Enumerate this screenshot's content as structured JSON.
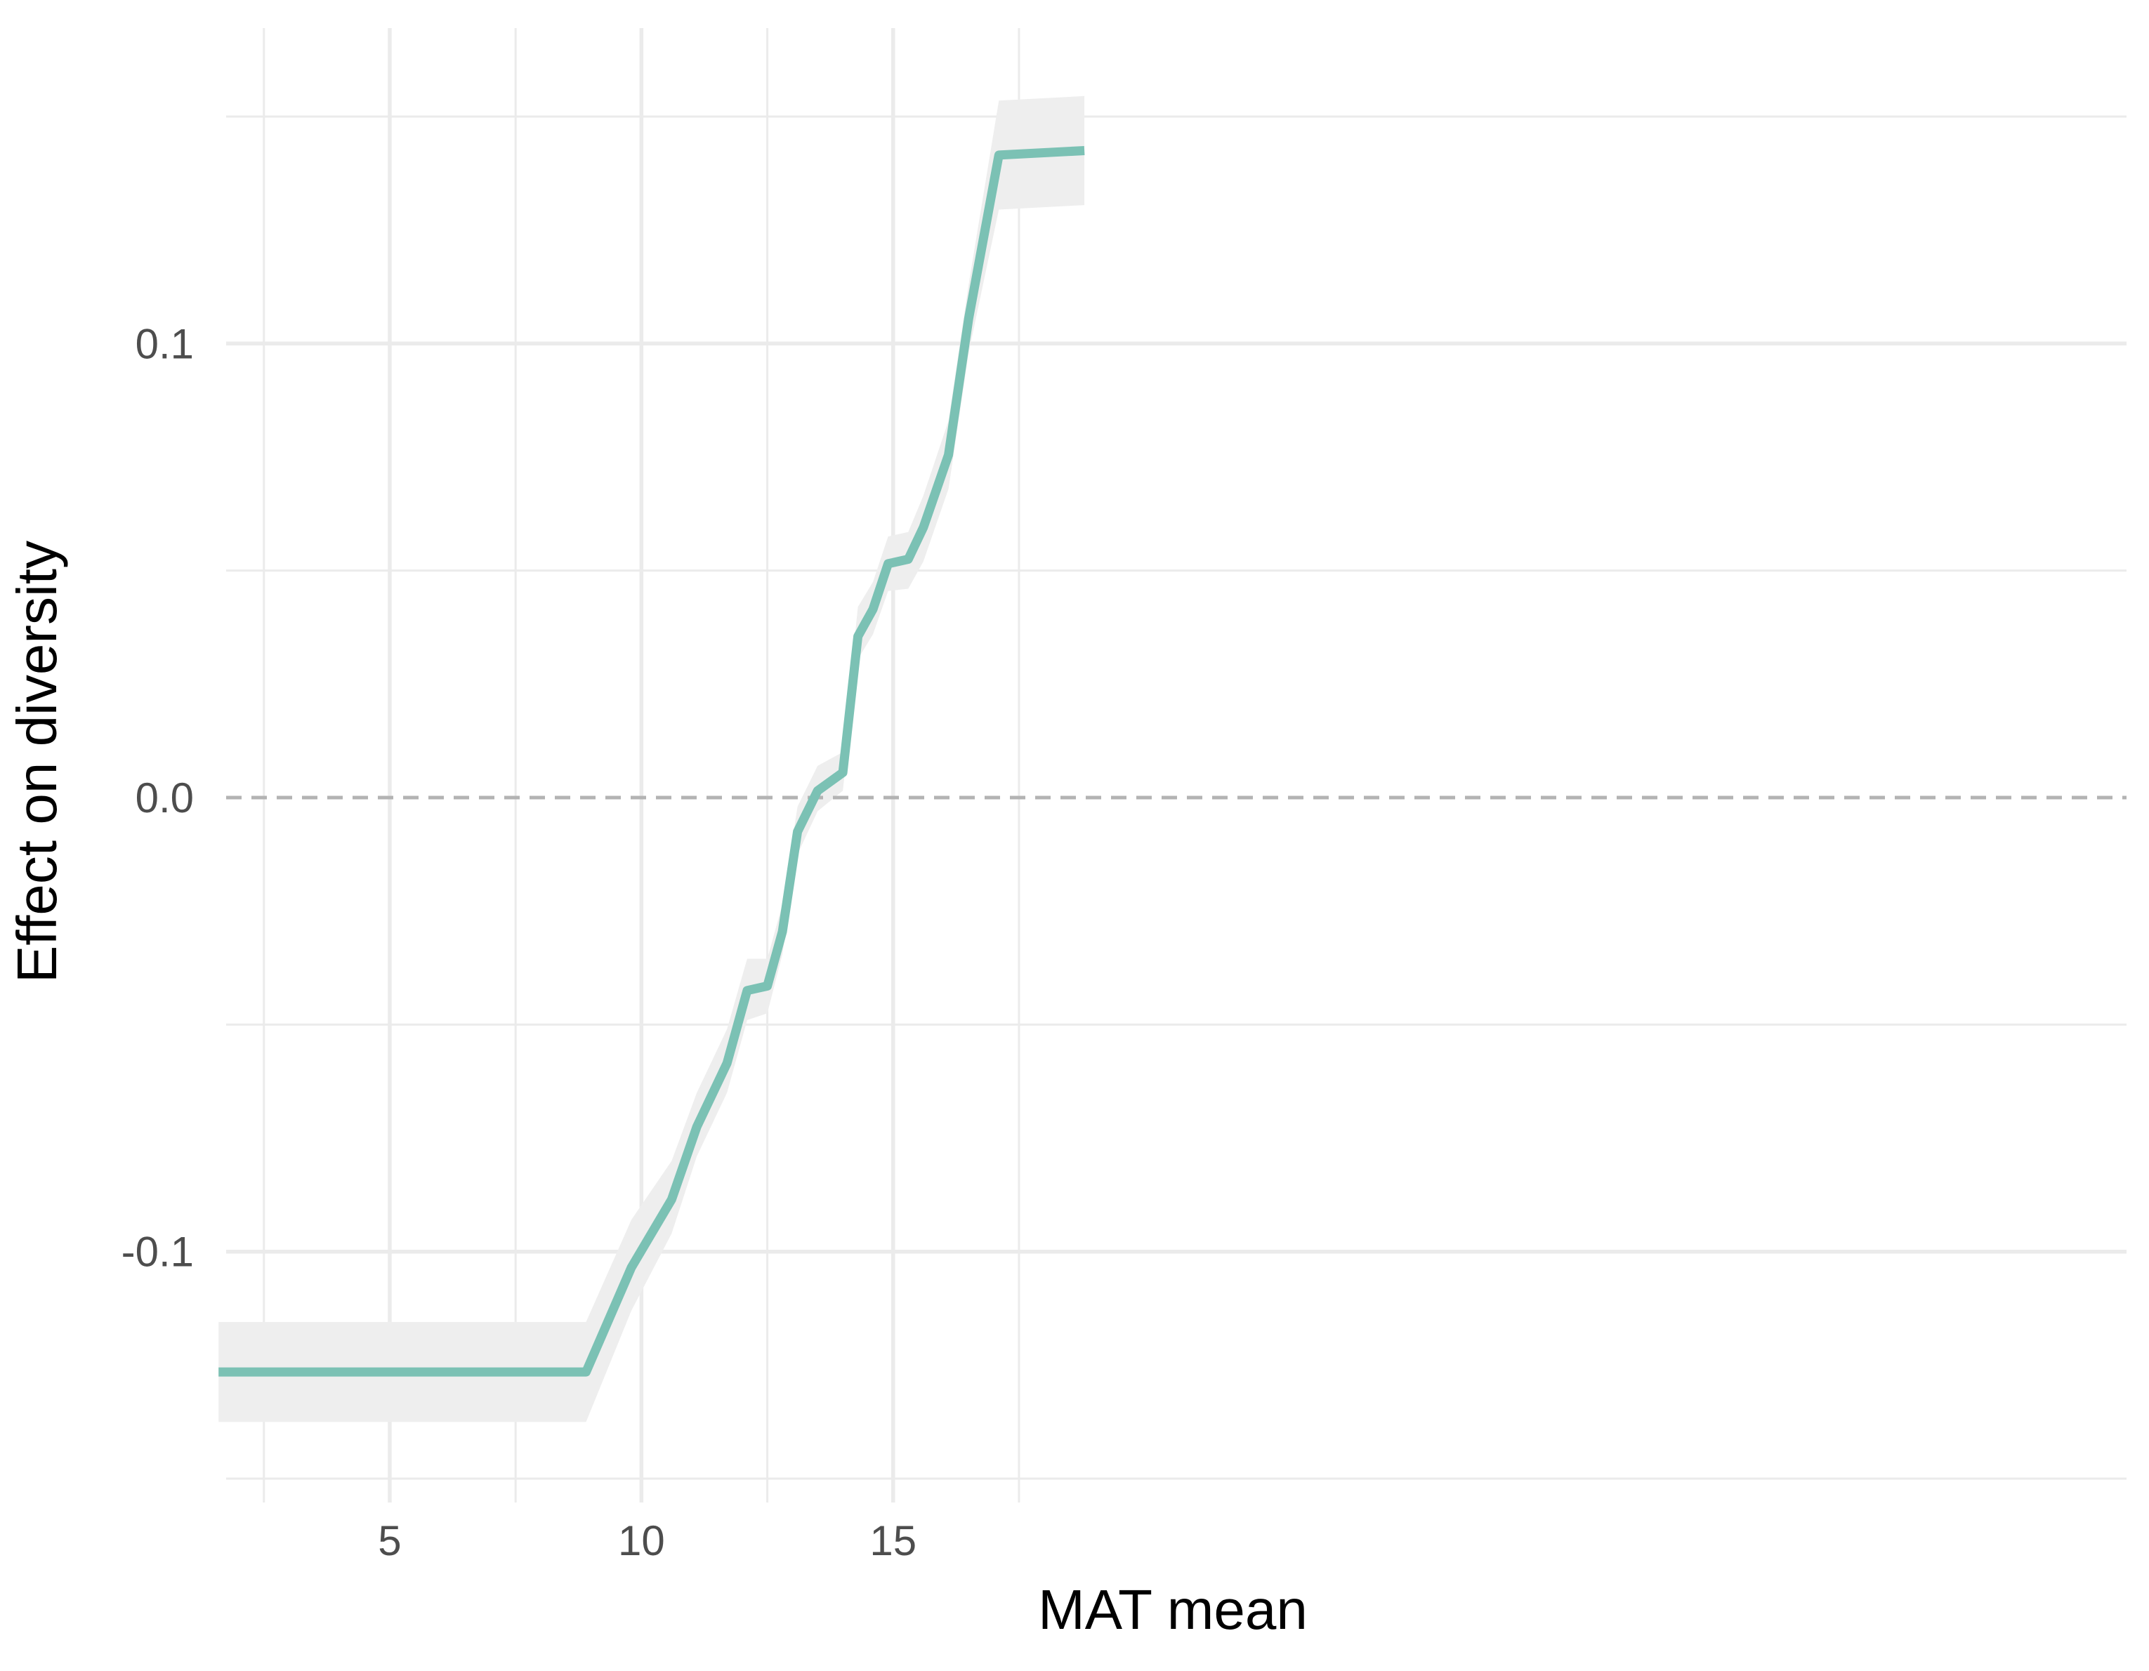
{
  "chart_data": {
    "type": "line",
    "xlabel": "MAT mean",
    "ylabel": "Effect on diversity",
    "xlim": [
      1.75,
      19.1
    ],
    "ylim": [
      -0.151,
      0.151
    ],
    "x_ticks": [
      {
        "value": 5,
        "label": "5"
      },
      {
        "value": 10,
        "label": "10"
      },
      {
        "value": 15,
        "label": "15"
      }
    ],
    "x_minor_ticks": [
      2.5,
      7.5,
      12.5,
      17.5
    ],
    "y_ticks": [
      {
        "value": -0.1,
        "label": "-0.1"
      },
      {
        "value": 0.0,
        "label": "0.0"
      },
      {
        "value": 0.1,
        "label": "0.1"
      }
    ],
    "y_minor_ticks": [
      -0.15,
      -0.05,
      0.05,
      0.15
    ],
    "grid": true,
    "legend": "none",
    "reference_line": {
      "y": 0.0,
      "style": "dashed",
      "color": "#b3b3b3"
    },
    "series": [
      {
        "color": "#7bc1b4",
        "band_color": "#eeeeee",
        "x": [
          1.6,
          8.9,
          9.8,
          10.6,
          11.1,
          11.7,
          12.1,
          12.5,
          12.8,
          13.1,
          13.5,
          14.0,
          14.3,
          14.6,
          14.9,
          15.3,
          15.6,
          16.1,
          16.5,
          17.1,
          18.8
        ],
        "y": [
          -0.1265,
          -0.1265,
          -0.1035,
          -0.0885,
          -0.0725,
          -0.0585,
          -0.0425,
          -0.0415,
          -0.0295,
          -0.0075,
          0.0015,
          0.0055,
          0.0355,
          0.0415,
          0.0515,
          0.0525,
          0.0595,
          0.0755,
          0.1055,
          0.1415,
          0.1425
        ],
        "lower": [
          -0.1375,
          -0.1375,
          -0.113,
          -0.096,
          -0.079,
          -0.065,
          -0.049,
          -0.0475,
          -0.0345,
          -0.0125,
          -0.003,
          0.0015,
          0.0305,
          0.036,
          0.0455,
          0.046,
          0.052,
          0.068,
          0.098,
          0.1295,
          0.1305
        ],
        "upper": [
          -0.1155,
          -0.1155,
          -0.093,
          -0.08,
          -0.065,
          -0.051,
          -0.0355,
          -0.0355,
          -0.0235,
          -0.002,
          0.007,
          0.01,
          0.042,
          0.0475,
          0.0575,
          0.0585,
          0.0665,
          0.083,
          0.113,
          0.1535,
          0.1545
        ]
      }
    ]
  }
}
